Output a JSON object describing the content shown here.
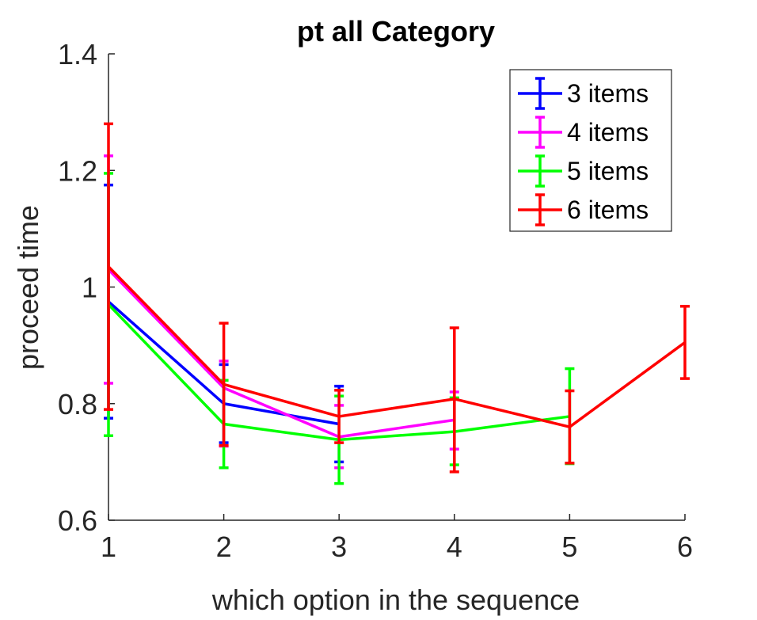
{
  "chart_data": {
    "type": "line",
    "title": "pt all Category",
    "xlabel": "which option in the sequence",
    "ylabel": "proceed time",
    "xlim": [
      1,
      6
    ],
    "ylim": [
      0.6,
      1.4
    ],
    "xticks": [
      "1",
      "2",
      "3",
      "4",
      "5",
      "6"
    ],
    "yticks": [
      "0.6",
      "0.8",
      "1",
      "1.2",
      "1.4"
    ],
    "grid": false,
    "legend_position": "top-right",
    "error_bars": true,
    "series": [
      {
        "name": "3 items",
        "color": "#0000ff",
        "x": [
          1,
          2,
          3
        ],
        "y": [
          0.975,
          0.8,
          0.765
        ],
        "err_low": [
          0.775,
          0.733,
          0.7
        ],
        "err_high": [
          1.175,
          0.867,
          0.83
        ]
      },
      {
        "name": "4 items",
        "color": "#ff00ff",
        "x": [
          1,
          2,
          3,
          4
        ],
        "y": [
          1.03,
          0.827,
          0.743,
          0.772
        ],
        "err_low": [
          0.835,
          0.727,
          0.69,
          0.722
        ],
        "err_high": [
          1.225,
          0.873,
          0.797,
          0.82
        ]
      },
      {
        "name": "5 items",
        "color": "#00ff00",
        "x": [
          1,
          2,
          3,
          4,
          5
        ],
        "y": [
          0.97,
          0.765,
          0.738,
          0.752,
          0.778
        ],
        "err_low": [
          0.745,
          0.69,
          0.663,
          0.695,
          0.697
        ],
        "err_high": [
          1.195,
          0.84,
          0.813,
          0.81,
          0.86
        ]
      },
      {
        "name": "6 items",
        "color": "#ff0000",
        "x": [
          1,
          2,
          3,
          4,
          5,
          6
        ],
        "y": [
          1.035,
          0.833,
          0.778,
          0.808,
          0.76,
          0.905
        ],
        "err_low": [
          0.79,
          0.728,
          0.733,
          0.683,
          0.698,
          0.843
        ],
        "err_high": [
          1.28,
          0.938,
          0.823,
          0.93,
          0.822,
          0.967
        ]
      }
    ]
  }
}
